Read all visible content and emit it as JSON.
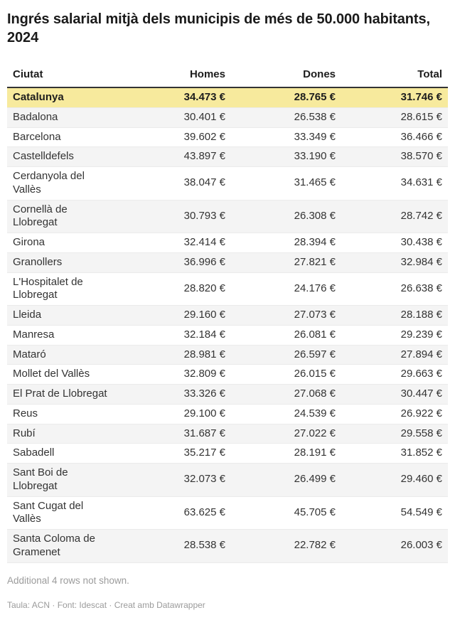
{
  "chart_data": {
    "type": "table",
    "title": "Ingrés salarial mitjà dels municipis de més de 50.000 habitants, 2024",
    "columns": [
      "Ciutat",
      "Homes",
      "Dones",
      "Total"
    ],
    "unit": "€",
    "highlight_row": "Catalunya",
    "rows": [
      {
        "city": "Catalunya",
        "homes": 34473,
        "dones": 28765,
        "total": 31746,
        "highlight": true
      },
      {
        "city": "Badalona",
        "homes": 30401,
        "dones": 26538,
        "total": 28615
      },
      {
        "city": "Barcelona",
        "homes": 39602,
        "dones": 33349,
        "total": 36466
      },
      {
        "city": "Castelldefels",
        "homes": 43897,
        "dones": 33190,
        "total": 38570
      },
      {
        "city": "Cerdanyola del Vallès",
        "homes": 38047,
        "dones": 31465,
        "total": 34631
      },
      {
        "city": "Cornellà de Llobregat",
        "homes": 30793,
        "dones": 26308,
        "total": 28742
      },
      {
        "city": "Girona",
        "homes": 32414,
        "dones": 28394,
        "total": 30438
      },
      {
        "city": "Granollers",
        "homes": 36996,
        "dones": 27821,
        "total": 32984
      },
      {
        "city": "L'Hospitalet de Llobregat",
        "homes": 28820,
        "dones": 24176,
        "total": 26638
      },
      {
        "city": "Lleida",
        "homes": 29160,
        "dones": 27073,
        "total": 28188
      },
      {
        "city": "Manresa",
        "homes": 32184,
        "dones": 26081,
        "total": 29239
      },
      {
        "city": "Mataró",
        "homes": 28981,
        "dones": 26597,
        "total": 27894
      },
      {
        "city": "Mollet del Vallès",
        "homes": 32809,
        "dones": 26015,
        "total": 29663
      },
      {
        "city": "El Prat de Llobregat",
        "homes": 33326,
        "dones": 27068,
        "total": 30447
      },
      {
        "city": "Reus",
        "homes": 29100,
        "dones": 24539,
        "total": 26922
      },
      {
        "city": "Rubí",
        "homes": 31687,
        "dones": 27022,
        "total": 29558
      },
      {
        "city": "Sabadell",
        "homes": 35217,
        "dones": 28191,
        "total": 31852
      },
      {
        "city": "Sant Boi de Llobregat",
        "homes": 32073,
        "dones": 26499,
        "total": 29460
      },
      {
        "city": "Sant Cugat del Vallès",
        "homes": 63625,
        "dones": 45705,
        "total": 54549
      },
      {
        "city": "Santa Coloma de Gramenet",
        "homes": 28538,
        "dones": 22782,
        "total": 26003
      }
    ],
    "note": "Additional 4 rows not shown.",
    "credit": "Taula: ACN · Font: Idescat · Creat amb Datawrapper"
  },
  "colors": {
    "highlight": "#F7EA9D",
    "stripe": "#F4F4F4",
    "header_border": "#333333",
    "text": "#333333",
    "muted_text": "#9B9B9B"
  }
}
